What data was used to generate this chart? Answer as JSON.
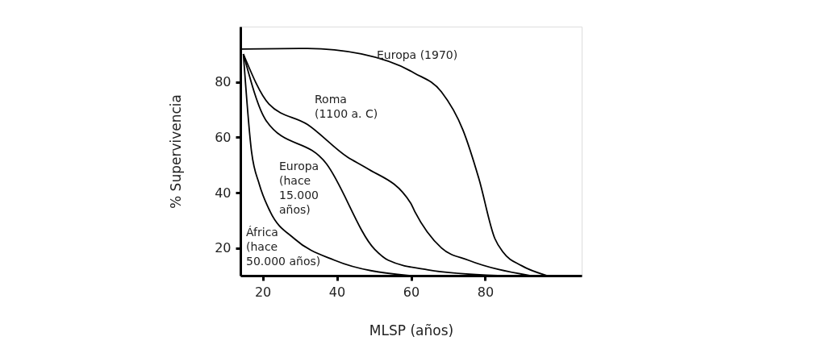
{
  "chart_data": {
    "type": "line",
    "xlabel": "MLSP (años)",
    "ylabel": "% Supervivencia",
    "xlim": [
      14,
      106
    ],
    "ylim": [
      10,
      100
    ],
    "xticks": [
      20,
      40,
      60,
      80
    ],
    "yticks": [
      20,
      40,
      60,
      80
    ],
    "grid": false,
    "legend": false,
    "marker": "none",
    "line_style": "solid",
    "series": [
      {
        "name": "Europa (1970)",
        "color": "#000000",
        "x": [
          14.4,
          32.1,
          46.6,
          60.9,
          68.2,
          74,
          78.3,
          82.6,
          84.8,
          89.8,
          96.7
        ],
        "values": [
          91.9,
          92.1,
          90.1,
          83.2,
          76.4,
          62.6,
          45,
          23.4,
          18.5,
          13.6,
          10
        ]
      },
      {
        "name": "Roma\n(1100 a. C)",
        "color": "#000000",
        "x": [
          14.8,
          21.7,
          32.1,
          42.9,
          48,
          59.9,
          61,
          68.2,
          75.4,
          92
        ],
        "values": [
          90.1,
          72,
          64.6,
          52.8,
          48.9,
          36.2,
          33.2,
          20,
          15.6,
          10
        ]
      },
      {
        "name": "Europa\n(hace\n15.000\naños)",
        "color": "#000000",
        "x": [
          14.8,
          20.9,
          37.2,
          50.2,
          53.8,
          64.6,
          83.4
        ],
        "values": [
          90.1,
          66.1,
          50.4,
          19.5,
          15.6,
          12.1,
          10
        ]
      },
      {
        "name": "África\n(hace\n50.000 años)",
        "color": "#000000",
        "x": [
          14.8,
          17,
          19.1,
          22,
          28.5,
          39.3,
          59.5
        ],
        "values": [
          90.1,
          54.8,
          43,
          33.2,
          23.4,
          15.6,
          10
        ]
      }
    ]
  }
}
